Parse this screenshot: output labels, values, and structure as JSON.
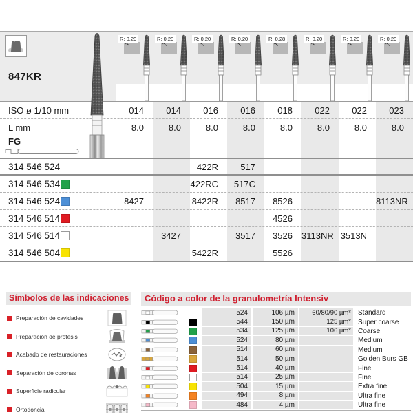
{
  "product": {
    "model": "847KR",
    "row_labels": {
      "iso": "ISO ø 1/10 mm",
      "l": "L mm",
      "shank": "FG"
    },
    "columns": [
      {
        "radius": "R: 0.20",
        "iso": "014",
        "l": "8.0"
      },
      {
        "radius": "R: 0.20",
        "iso": "014",
        "l": "8.0"
      },
      {
        "radius": "R: 0.20",
        "iso": "016",
        "l": "8.0"
      },
      {
        "radius": "R: 0.20",
        "iso": "016",
        "l": "8.0"
      },
      {
        "radius": "R: 0.28",
        "iso": "018",
        "l": "8.0"
      },
      {
        "radius": "R: 0.20",
        "iso": "022",
        "l": "8.0"
      },
      {
        "radius": "R: 0.20",
        "iso": "022",
        "l": "8.0"
      },
      {
        "radius": "R: 0.20",
        "iso": "023",
        "l": "8.0"
      }
    ],
    "article_rows": [
      {
        "number": "314 546 524",
        "color": null,
        "values": [
          "",
          "",
          "422R",
          "517",
          "",
          "",
          "",
          ""
        ]
      },
      {
        "number": "314 546 534",
        "color": "#22a14a",
        "values": [
          "",
          "",
          "422RC",
          "517C",
          "",
          "",
          "",
          ""
        ]
      },
      {
        "number": "314 546 524",
        "color": "#4d8fd6",
        "values": [
          "8427",
          "",
          "8422R",
          "8517",
          "8526",
          "",
          "",
          "8113NR"
        ]
      },
      {
        "number": "314 546 514",
        "color": "#e01b22",
        "values": [
          "",
          "",
          "",
          "",
          "4526",
          "",
          "",
          ""
        ]
      },
      {
        "number": "314 546 514",
        "color": "#ffffff",
        "values": [
          "",
          "3427",
          "",
          "3517",
          "3526",
          "3113NR",
          "3513N",
          ""
        ]
      },
      {
        "number": "314 546 504",
        "color": "#f8e303",
        "values": [
          "",
          "",
          "5422R",
          "",
          "5526",
          "",
          "",
          ""
        ]
      }
    ]
  },
  "symbols_panel": {
    "title": "Símbolos de las indicaciones",
    "items": [
      {
        "label": "Preparación de cavidades",
        "icon": "cavity-prep-tooth-icon"
      },
      {
        "label": "Preparación de prótesis",
        "icon": "prosthesis-crown-icon"
      },
      {
        "label": "Acabado de restauraciones",
        "icon": "restoration-finishing-icon"
      },
      {
        "label": "Separación de coronas",
        "icon": "crown-separation-icon"
      },
      {
        "label": "Superficie radicular",
        "icon": "root-surface-icon"
      },
      {
        "label": "Ortodoncia",
        "icon": "orthodontics-braces-icon"
      }
    ]
  },
  "granulometry_panel": {
    "title": "Código a color de la granulometría Intensiv",
    "rows": [
      {
        "color": null,
        "code": "524",
        "grit": "106 µm",
        "alt": "60/80/90 µm*",
        "name": "Standard"
      },
      {
        "color": "#000000",
        "code": "544",
        "grit": "150 µm",
        "alt": "125 µm*",
        "name": "Super coarse"
      },
      {
        "color": "#22a14a",
        "code": "534",
        "grit": "125 µm",
        "alt": "106 µm*",
        "name": "Coarse"
      },
      {
        "color": "#4d8fd6",
        "code": "524",
        "grit": "80 µm",
        "alt": "",
        "name": "Medium"
      },
      {
        "color": "#8a6239",
        "code": "514",
        "grit": "60 µm",
        "alt": "",
        "name": "Medium"
      },
      {
        "color": "#d9a63c",
        "code": "514",
        "grit": "50 µm",
        "alt": "",
        "name": "Golden Burs GB"
      },
      {
        "color": "#e01b22",
        "code": "514",
        "grit": "40 µm",
        "alt": "",
        "name": "Fine"
      },
      {
        "color": "#ffffff",
        "code": "514",
        "grit": "25 µm",
        "alt": "",
        "name": "Fine"
      },
      {
        "color": "#f8e303",
        "code": "504",
        "grit": "15 µm",
        "alt": "",
        "name": "Extra fine"
      },
      {
        "color": "#f58220",
        "code": "494",
        "grit": "8 µm",
        "alt": "",
        "name": "Ultra fine"
      },
      {
        "color": "#f5b8c8",
        "code": "484",
        "grit": "4 µm",
        "alt": "",
        "name": "Ultra fine"
      }
    ]
  },
  "colors": {
    "accent_red": "#cf2030",
    "header_gray": "#ececec",
    "stripe_gray": "#e9e9e9",
    "band_gray": "#e4e4e4"
  }
}
